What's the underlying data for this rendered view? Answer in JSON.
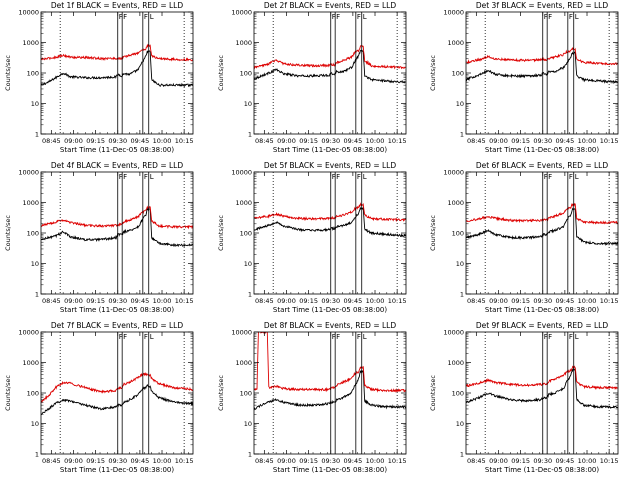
{
  "chart_data": {
    "type": "line",
    "xlabel": "Start Time (11-Dec-05 08:38:00)",
    "ylabel": "Counts/sec",
    "yscale": "log",
    "ylim": [
      1,
      10000
    ],
    "yticks": [
      "1",
      "10",
      "100",
      "1000",
      "10000"
    ],
    "xticks": [
      "08:45",
      "09:00",
      "09:15",
      "09:30",
      "09:45",
      "10:00",
      "10:15"
    ],
    "xlim_minutes_after_start": [
      0,
      103
    ],
    "xtick_minutes_after_start": [
      7,
      22,
      37,
      52,
      67,
      82,
      97
    ],
    "markers": [
      {
        "label": "",
        "style": "dotted",
        "t": 13
      },
      {
        "label": "F",
        "style": "solid",
        "t": 52
      },
      {
        "label": "F",
        "style": "solid",
        "t": 55
      },
      {
        "label": "F",
        "style": "solid",
        "t": 69
      },
      {
        "label": "L",
        "style": "solid",
        "t": 73
      },
      {
        "label": "",
        "style": "dotted",
        "t": 97
      }
    ],
    "series_colors": {
      "events": "#000000",
      "lld": "#dd0000"
    },
    "panels": [
      {
        "title": "Det 1f BLACK = Events, RED = LLD",
        "series": [
          {
            "key": "events",
            "x": [
              0,
              5,
              10,
              15,
              20,
              30,
              40,
              51,
              52,
              55,
              56,
              60,
              66,
              68,
              71,
              72,
              74,
              75,
              80,
              90,
              103
            ],
            "y": [
              40,
              50,
              70,
              100,
              75,
              70,
              70,
              75,
              90,
              80,
              95,
              90,
              130,
              200,
              350,
              500,
              500,
              60,
              40,
              40,
              40
            ]
          },
          {
            "key": "lld",
            "x": [
              0,
              5,
              10,
              15,
              20,
              30,
              40,
              51,
              52,
              55,
              56,
              60,
              66,
              68,
              71,
              72,
              74,
              75,
              80,
              90,
              103
            ],
            "y": [
              280,
              300,
              330,
              380,
              330,
              320,
              300,
              300,
              300,
              300,
              330,
              380,
              450,
              560,
              600,
              800,
              800,
              350,
              300,
              280,
              270
            ]
          }
        ]
      },
      {
        "title": "Det 2f BLACK = Events, RED = LLD",
        "series": [
          {
            "key": "events",
            "x": [
              0,
              5,
              10,
              15,
              20,
              30,
              40,
              51,
              52,
              55,
              56,
              60,
              66,
              68,
              71,
              72,
              74,
              75,
              80,
              90,
              103
            ],
            "y": [
              65,
              80,
              100,
              130,
              95,
              80,
              80,
              85,
              100,
              90,
              110,
              110,
              150,
              220,
              380,
              520,
              520,
              80,
              60,
              55,
              50
            ]
          },
          {
            "key": "lld",
            "x": [
              0,
              5,
              10,
              15,
              20,
              30,
              40,
              51,
              52,
              55,
              56,
              60,
              66,
              68,
              71,
              72,
              74,
              75,
              80,
              90,
              103
            ],
            "y": [
              150,
              170,
              200,
              270,
              200,
              180,
              170,
              180,
              190,
              180,
              220,
              250,
              330,
              450,
              550,
              750,
              750,
              250,
              170,
              160,
              150
            ]
          }
        ]
      },
      {
        "title": "Det 3f BLACK = Events, RED = LLD",
        "series": [
          {
            "key": "events",
            "x": [
              0,
              5,
              10,
              15,
              20,
              30,
              40,
              51,
              52,
              55,
              56,
              60,
              66,
              68,
              71,
              72,
              74,
              75,
              80,
              90,
              103
            ],
            "y": [
              60,
              75,
              90,
              120,
              90,
              80,
              80,
              85,
              100,
              90,
              110,
              110,
              150,
              200,
              330,
              450,
              450,
              80,
              60,
              55,
              50
            ]
          },
          {
            "key": "lld",
            "x": [
              0,
              5,
              10,
              15,
              20,
              30,
              40,
              51,
              52,
              55,
              56,
              60,
              66,
              68,
              71,
              72,
              74,
              75,
              80,
              90,
              103
            ],
            "y": [
              220,
              250,
              280,
              350,
              290,
              270,
              260,
              270,
              280,
              270,
              300,
              330,
              400,
              480,
              520,
              600,
              600,
              280,
              220,
              210,
              200
            ]
          }
        ]
      },
      {
        "title": "Det 4f BLACK = Events, RED = LLD",
        "series": [
          {
            "key": "events",
            "x": [
              0,
              5,
              10,
              15,
              20,
              30,
              40,
              51,
              52,
              55,
              56,
              60,
              66,
              68,
              71,
              72,
              74,
              75,
              80,
              90,
              103
            ],
            "y": [
              60,
              70,
              80,
              110,
              75,
              60,
              60,
              70,
              90,
              90,
              110,
              120,
              160,
              240,
              400,
              600,
              600,
              70,
              45,
              40,
              40
            ]
          },
          {
            "key": "lld",
            "x": [
              0,
              5,
              10,
              15,
              20,
              30,
              40,
              51,
              52,
              55,
              56,
              60,
              66,
              68,
              71,
              72,
              74,
              75,
              80,
              90,
              103
            ],
            "y": [
              170,
              200,
              230,
              270,
              220,
              180,
              170,
              180,
              190,
              190,
              230,
              260,
              350,
              450,
              550,
              700,
              700,
              250,
              170,
              160,
              160
            ]
          }
        ]
      },
      {
        "title": "Det 5f BLACK = Events, RED = LLD",
        "series": [
          {
            "key": "events",
            "x": [
              0,
              5,
              10,
              15,
              20,
              30,
              40,
              51,
              52,
              55,
              56,
              60,
              66,
              68,
              71,
              72,
              74,
              75,
              80,
              90,
              103
            ],
            "y": [
              130,
              150,
              180,
              230,
              170,
              130,
              120,
              130,
              140,
              140,
              160,
              170,
              220,
              300,
              450,
              650,
              650,
              130,
              100,
              90,
              80
            ]
          },
          {
            "key": "lld",
            "x": [
              0,
              5,
              10,
              15,
              20,
              30,
              40,
              51,
              52,
              55,
              56,
              60,
              66,
              68,
              71,
              72,
              74,
              75,
              80,
              90,
              103
            ],
            "y": [
              300,
              330,
              360,
              420,
              360,
              300,
              290,
              300,
              310,
              310,
              350,
              380,
              480,
              600,
              700,
              850,
              850,
              380,
              290,
              280,
              270
            ]
          }
        ]
      },
      {
        "title": "Det 6f BLACK = Events, RED = LLD",
        "series": [
          {
            "key": "events",
            "x": [
              0,
              5,
              10,
              15,
              20,
              30,
              40,
              51,
              52,
              55,
              56,
              60,
              66,
              68,
              71,
              72,
              74,
              75,
              80,
              90,
              103
            ],
            "y": [
              70,
              80,
              95,
              120,
              90,
              70,
              70,
              75,
              90,
              90,
              110,
              120,
              160,
              250,
              400,
              600,
              600,
              75,
              50,
              45,
              45
            ]
          },
          {
            "key": "lld",
            "x": [
              0,
              5,
              10,
              15,
              20,
              30,
              40,
              51,
              52,
              55,
              56,
              60,
              66,
              68,
              71,
              72,
              74,
              75,
              80,
              90,
              103
            ],
            "y": [
              250,
              270,
              300,
              340,
              300,
              260,
              250,
              260,
              270,
              270,
              310,
              350,
              450,
              600,
              700,
              850,
              850,
              300,
              230,
              220,
              220
            ]
          }
        ]
      },
      {
        "title": "Det 7f BLACK = Events, RED = LLD",
        "series": [
          {
            "key": "events",
            "x": [
              0,
              5,
              10,
              15,
              20,
              30,
              40,
              51,
              52,
              55,
              56,
              60,
              66,
              68,
              71,
              72,
              74,
              75,
              80,
              90,
              103
            ],
            "y": [
              20,
              30,
              45,
              60,
              55,
              40,
              30,
              35,
              40,
              40,
              50,
              60,
              90,
              130,
              150,
              170,
              160,
              110,
              70,
              50,
              45
            ]
          },
          {
            "key": "lld",
            "x": [
              0,
              5,
              10,
              15,
              20,
              30,
              40,
              51,
              52,
              55,
              56,
              60,
              66,
              68,
              71,
              72,
              74,
              75,
              80,
              90,
              103
            ],
            "y": [
              50,
              80,
              150,
              220,
              210,
              150,
              110,
              120,
              140,
              150,
              190,
              230,
              320,
              400,
              420,
              400,
              380,
              300,
              200,
              150,
              130
            ]
          }
        ]
      },
      {
        "title": "Det 8f BLACK = Events, RED = LLD",
        "series": [
          {
            "key": "events",
            "x": [
              0,
              5,
              10,
              15,
              20,
              30,
              40,
              51,
              52,
              55,
              56,
              60,
              66,
              68,
              71,
              72,
              74,
              75,
              80,
              90,
              103
            ],
            "y": [
              30,
              40,
              50,
              60,
              50,
              40,
              40,
              45,
              50,
              50,
              60,
              70,
              100,
              160,
              300,
              500,
              500,
              55,
              40,
              35,
              35
            ]
          },
          {
            "key": "lld",
            "x": [
              0,
              2,
              3,
              7,
              8,
              9,
              10,
              15,
              20,
              30,
              40,
              51,
              52,
              55,
              56,
              60,
              66,
              68,
              71,
              72,
              74,
              75,
              80,
              90,
              103
            ],
            "y": [
              130,
              130,
              10000,
              10000,
              10000,
              10000,
              150,
              170,
              140,
              130,
              130,
              130,
              150,
              150,
              180,
              220,
              300,
              420,
              500,
              700,
              700,
              180,
              130,
              120,
              120
            ]
          }
        ]
      },
      {
        "title": "Det 9f BLACK = Events, RED = LLD",
        "series": [
          {
            "key": "events",
            "x": [
              0,
              5,
              10,
              15,
              20,
              30,
              40,
              51,
              52,
              55,
              56,
              60,
              66,
              68,
              71,
              72,
              74,
              75,
              80,
              90,
              103
            ],
            "y": [
              50,
              60,
              75,
              100,
              80,
              60,
              55,
              60,
              70,
              70,
              90,
              100,
              140,
              220,
              380,
              580,
              580,
              60,
              40,
              35,
              35
            ]
          },
          {
            "key": "lld",
            "x": [
              0,
              5,
              10,
              15,
              20,
              30,
              40,
              51,
              52,
              55,
              56,
              60,
              66,
              68,
              71,
              72,
              74,
              75,
              80,
              90,
              103
            ],
            "y": [
              170,
              190,
              220,
              260,
              220,
              190,
              180,
              190,
              200,
              200,
              240,
              280,
              370,
              480,
              560,
              700,
              700,
              220,
              160,
              150,
              150
            ]
          }
        ]
      }
    ]
  }
}
